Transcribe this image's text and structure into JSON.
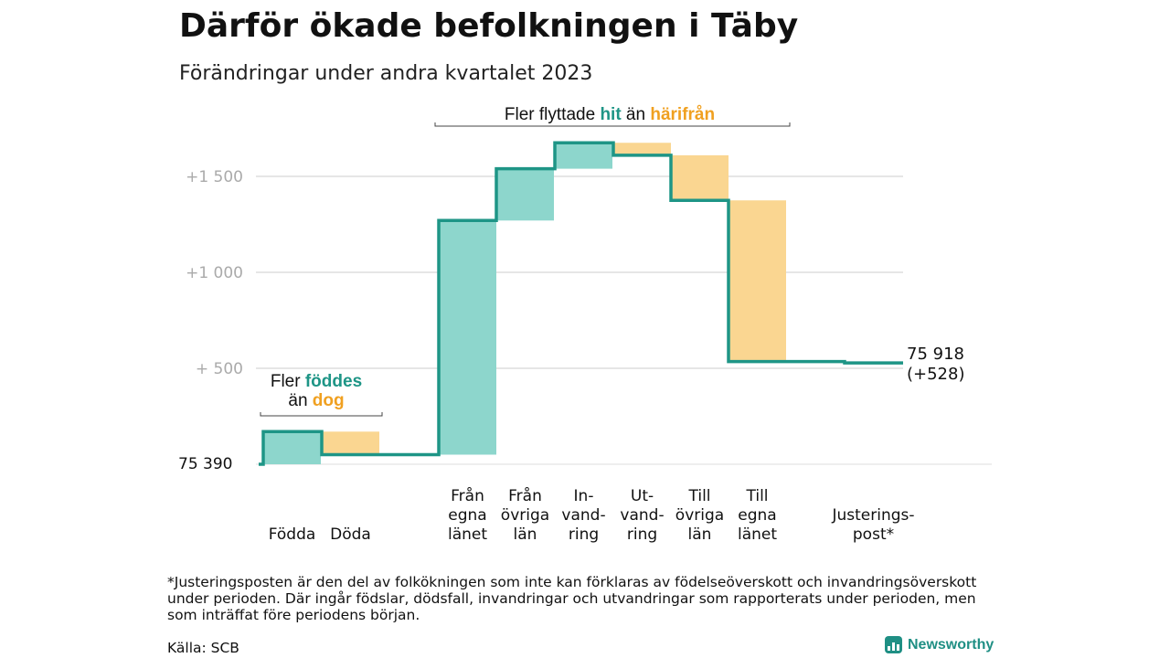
{
  "title": "Därför ökade befolkningen i Täby",
  "subtitle": "Förändringar under andra kvartalet 2023",
  "footnote": "*Justeringsposten är den del av folkökningen som inte kan förklaras av födelseöverskott och invandringsöverskott under perioden. Där ingår födslar, dödsfall, invandringar och utvandringar som rapporterats under perioden, men som inträffat före periodens början.",
  "source": "Källa: SCB",
  "brand": "Newsworthy",
  "colors": {
    "increase": "#8dd6cc",
    "decrease": "#fad691",
    "line": "#1e9586",
    "grid": "#dddddd",
    "tick_text": "#aaaaaa",
    "highlight_teal": "#1e9586",
    "highlight_orange": "#f0a020"
  },
  "chart_data": {
    "type": "waterfall",
    "start_value": 75390,
    "end_value": 75918,
    "start_label": "75  390",
    "end_label_value": "75 918",
    "end_label_change": "(+528)",
    "y_ticks": [
      {
        "value": 500,
        "label": "+  500"
      },
      {
        "value": 1000,
        "label": "+1  000"
      },
      {
        "value": 1500,
        "label": "+1  500"
      }
    ],
    "steps": [
      {
        "label_lines": [
          "Födda"
        ],
        "change": 170
      },
      {
        "label_lines": [
          "Döda"
        ],
        "change": -120
      },
      {
        "label_lines": [
          "Från",
          "egna",
          "länet"
        ],
        "change": 1220
      },
      {
        "label_lines": [
          "Från",
          "övriga",
          "län"
        ],
        "change": 270
      },
      {
        "label_lines": [
          "In-",
          "vand-",
          "ring"
        ],
        "change": 135
      },
      {
        "label_lines": [
          "Ut-",
          "vand-",
          "ring"
        ],
        "change": -65
      },
      {
        "label_lines": [
          "Till",
          "övriga",
          "län"
        ],
        "change": -235
      },
      {
        "label_lines": [
          "Till",
          "egna",
          "länet"
        ],
        "change": -840
      },
      {
        "label_lines": [
          "Justerings-",
          "post*"
        ],
        "change": -7
      }
    ],
    "annotations": [
      {
        "text_parts": [
          [
            "Fler ",
            "normal"
          ],
          [
            "föddes",
            "teal"
          ]
        ],
        "text_parts2": [
          [
            "än ",
            "normal"
          ],
          [
            "dog",
            "orange"
          ]
        ],
        "spans_steps": [
          0,
          1
        ]
      },
      {
        "text_parts": [
          [
            "Fler flyttade ",
            "normal"
          ],
          [
            "hit",
            "teal"
          ],
          [
            " än ",
            "normal"
          ],
          [
            "härifrån",
            "orange"
          ]
        ],
        "spans_steps": [
          2,
          7
        ]
      }
    ]
  }
}
